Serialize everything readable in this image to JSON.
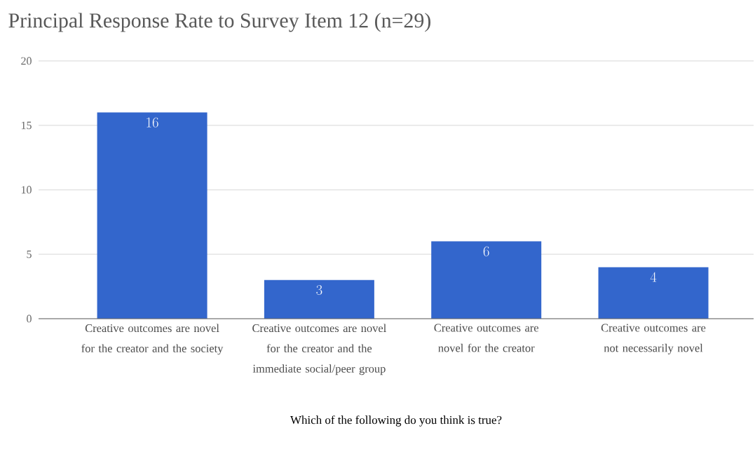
{
  "chart_data": {
    "type": "bar",
    "title": "Principal Response Rate to Survey Item 12 (n=29)",
    "xlabel": "Which of the following do you think is true?",
    "categories": [
      "Creative outcomes are novel for the creator and the society",
      "Creative outcomes are novel for the creator and the immediate social/peer group",
      "Creative outcomes are novel for the creator",
      "Creative outcomes are not necessarily novel"
    ],
    "values": [
      16,
      3,
      6,
      4
    ],
    "color": "#3366cc",
    "ylim": [
      0,
      20
    ],
    "yticks": [
      0,
      5,
      10,
      15,
      20
    ],
    "grid": "y",
    "data_labels": true
  }
}
